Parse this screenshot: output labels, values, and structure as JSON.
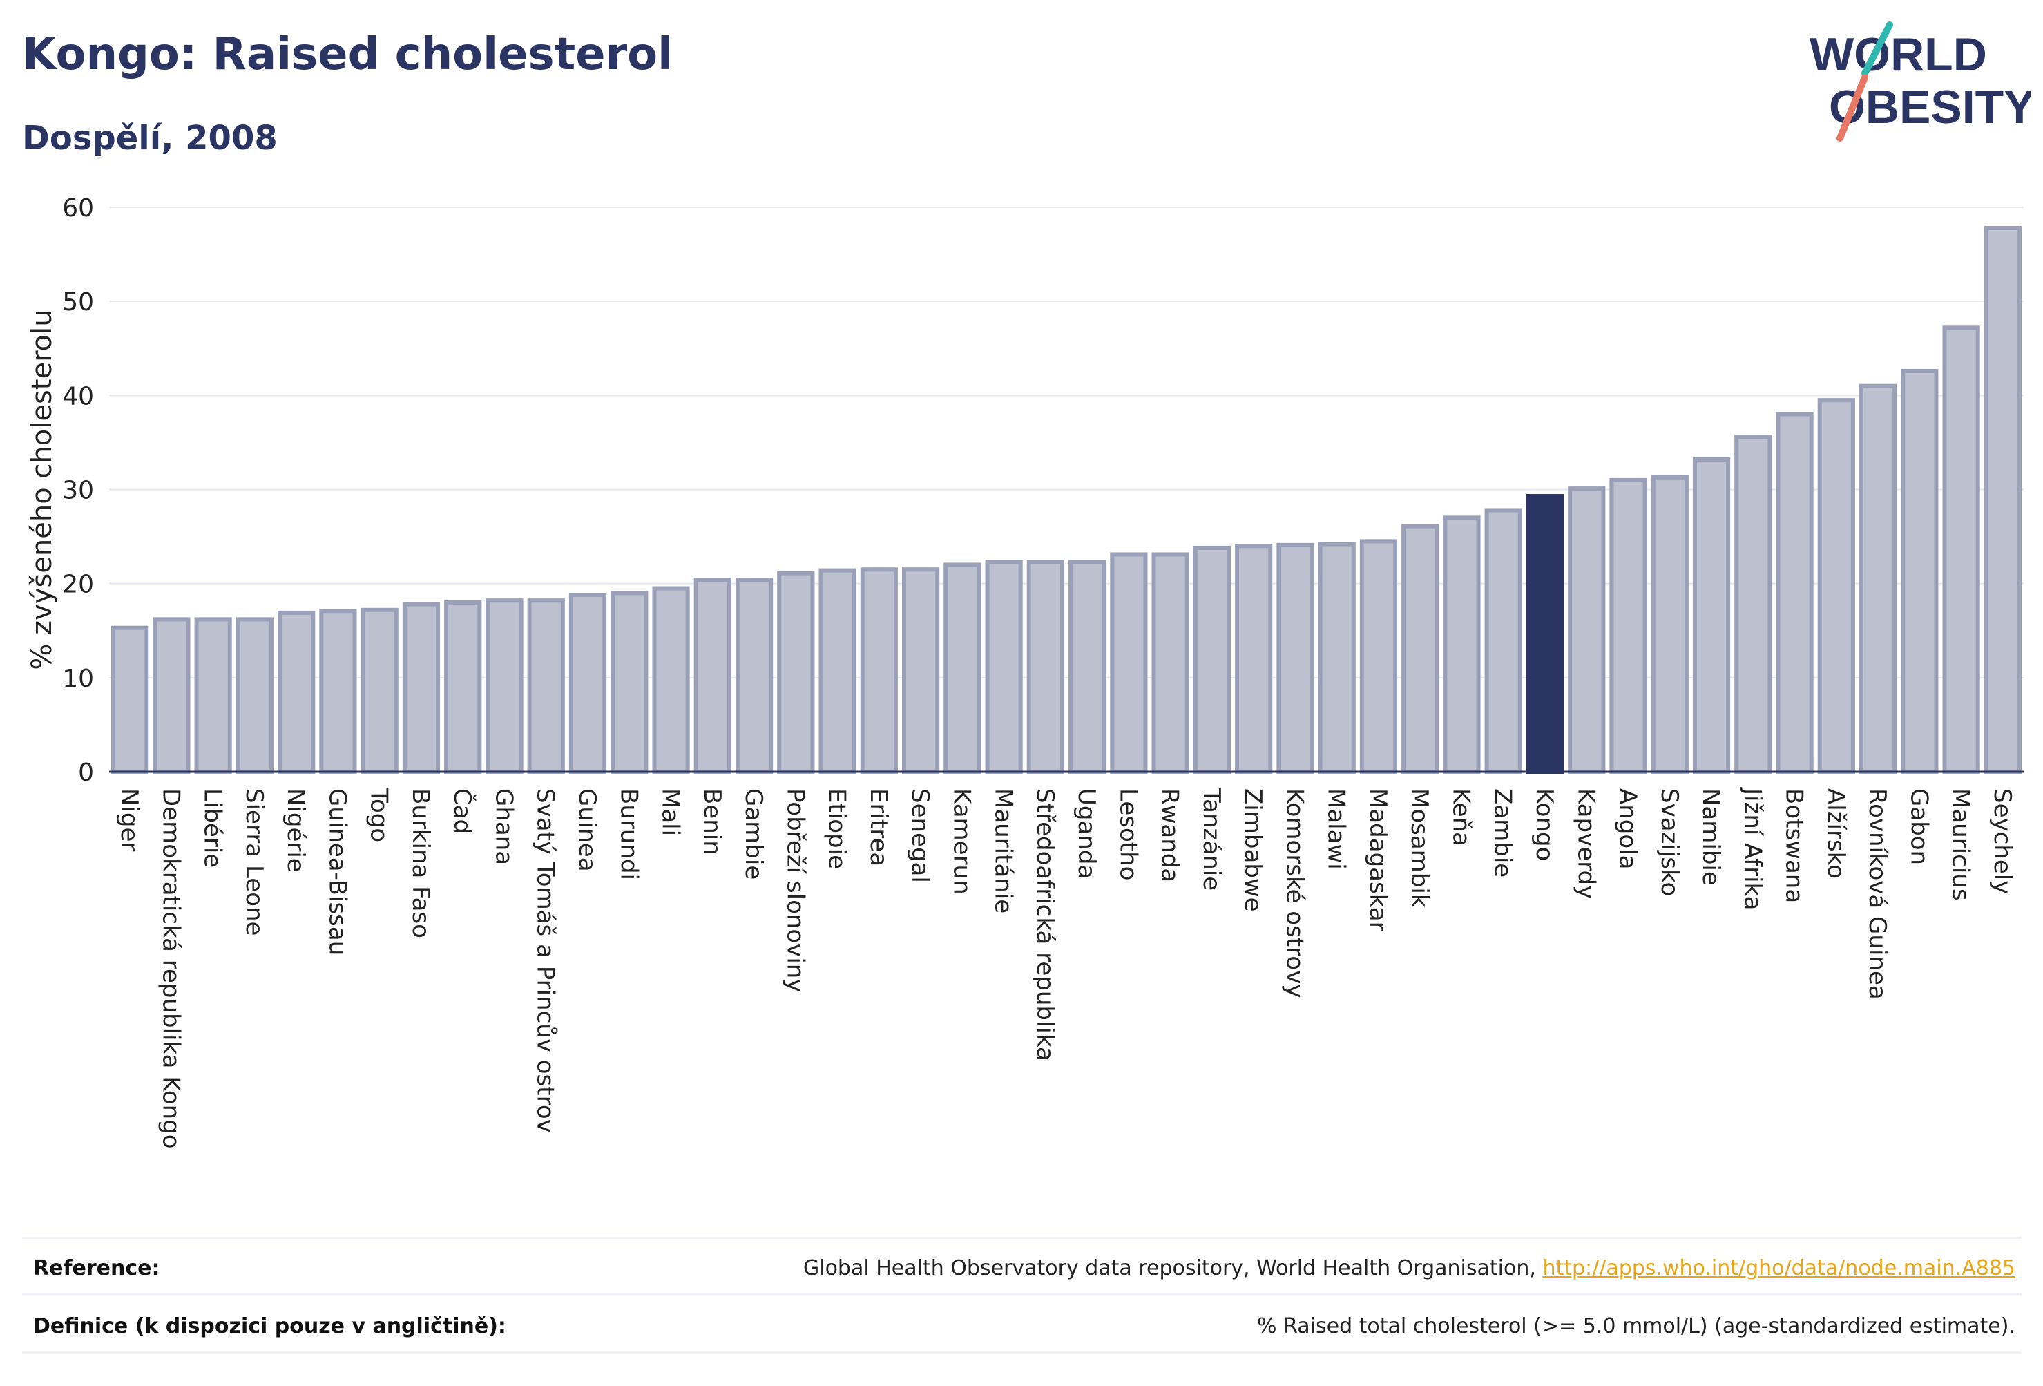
{
  "header": {
    "title": "Kongo: Raised cholesterol",
    "subtitle": "Dospělí, 2008"
  },
  "logo": {
    "line1": "WORLD",
    "line2": "OBESITY"
  },
  "colors": {
    "bar": "#bcc0cf",
    "bar_stroke": "#9aa0b8",
    "highlight": "#2a3563",
    "title": "#2a3563",
    "grid": "#e6e8f0",
    "link": "#e8a317"
  },
  "chart_data": {
    "type": "bar",
    "ylabel": "% zvýšeného cholesterolu",
    "ylim": [
      0,
      60
    ],
    "yticks": [
      0,
      10,
      20,
      30,
      40,
      50,
      60
    ],
    "grid": true,
    "highlight": "Kongo",
    "categories": [
      "Niger",
      "Demokratická republika Kongo",
      "Libérie",
      "Sierra Leone",
      "Nigérie",
      "Guinea-Bissau",
      "Togo",
      "Burkina Faso",
      "Čad",
      "Ghana",
      "Svatý Tomáš a Princův ostrov",
      "Guinea",
      "Burundi",
      "Mali",
      "Benin",
      "Gambie",
      "Pobřeží slonoviny",
      "Etiopie",
      "Eritrea",
      "Senegal",
      "Kamerun",
      "Mauritánie",
      "Středoafrická republika",
      "Uganda",
      "Lesotho",
      "Rwanda",
      "Tanzánie",
      "Zimbabwe",
      "Komorské ostrovy",
      "Malawi",
      "Madagaskar",
      "Mosambik",
      "Keňa",
      "Zambie",
      "Kongo",
      "Kapverdy",
      "Angola",
      "Svazijsko",
      "Namibie",
      "Jižní Afrika",
      "Botswana",
      "Alžírsko",
      "Rovníková Guinea",
      "Gabon",
      "Mauricius",
      "Seychely"
    ],
    "values": [
      15.3,
      16.2,
      16.2,
      16.2,
      16.9,
      17.1,
      17.2,
      17.8,
      18.0,
      18.2,
      18.2,
      18.8,
      19.0,
      19.5,
      20.4,
      20.4,
      21.1,
      21.4,
      21.5,
      21.5,
      22.0,
      22.3,
      22.3,
      22.3,
      23.1,
      23.1,
      23.8,
      24.0,
      24.1,
      24.2,
      24.5,
      26.1,
      27.0,
      27.8,
      29.3,
      30.1,
      31.0,
      31.3,
      33.2,
      35.6,
      38.0,
      39.5,
      41.0,
      42.6,
      47.2,
      57.8
    ]
  },
  "footer": {
    "reference_label": "Reference:",
    "reference_text": "Global Health Observatory data repository, World Health Organisation,",
    "reference_link": "http://apps.who.int/gho/data/node.main.A885",
    "definition_label": "Definice (k dispozici pouze v angličtině):",
    "definition_text": "% Raised total cholesterol (>= 5.0 mmol/L) (age-standardized estimate)."
  }
}
